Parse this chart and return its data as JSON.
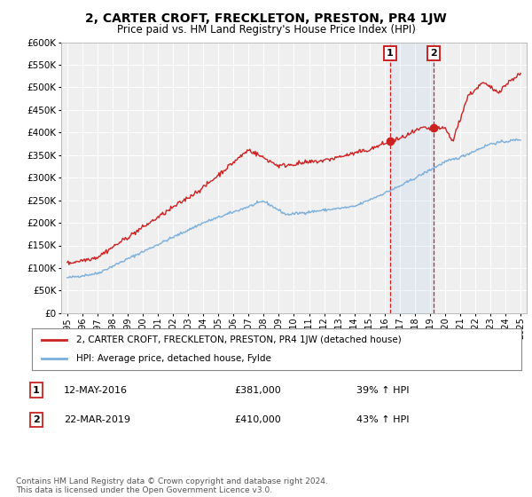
{
  "title": "2, CARTER CROFT, FRECKLETON, PRESTON, PR4 1JW",
  "subtitle": "Price paid vs. HM Land Registry's House Price Index (HPI)",
  "ylim": [
    0,
    600000
  ],
  "yticks": [
    0,
    50000,
    100000,
    150000,
    200000,
    250000,
    300000,
    350000,
    400000,
    450000,
    500000,
    550000,
    600000
  ],
  "background_color": "#ffffff",
  "plot_bg_color": "#efefef",
  "grid_color": "#ffffff",
  "hpi_color": "#7aaedc",
  "price_color": "#cc2222",
  "transaction1": {
    "date_num": 2016.36,
    "price": 381000,
    "label": "1"
  },
  "transaction2": {
    "date_num": 2019.22,
    "price": 410000,
    "label": "2"
  },
  "legend_price_label": "2, CARTER CROFT, FRECKLETON, PRESTON, PR4 1JW (detached house)",
  "legend_hpi_label": "HPI: Average price, detached house, Fylde",
  "note1_label": "1",
  "note1_date": "12-MAY-2016",
  "note1_price": "£381,000",
  "note1_hpi": "39% ↑ HPI",
  "note2_label": "2",
  "note2_date": "22-MAR-2019",
  "note2_price": "£410,000",
  "note2_hpi": "43% ↑ HPI",
  "footer": "Contains HM Land Registry data © Crown copyright and database right 2024.\nThis data is licensed under the Open Government Licence v3.0.",
  "xlim_left": 1994.6,
  "xlim_right": 2025.4
}
